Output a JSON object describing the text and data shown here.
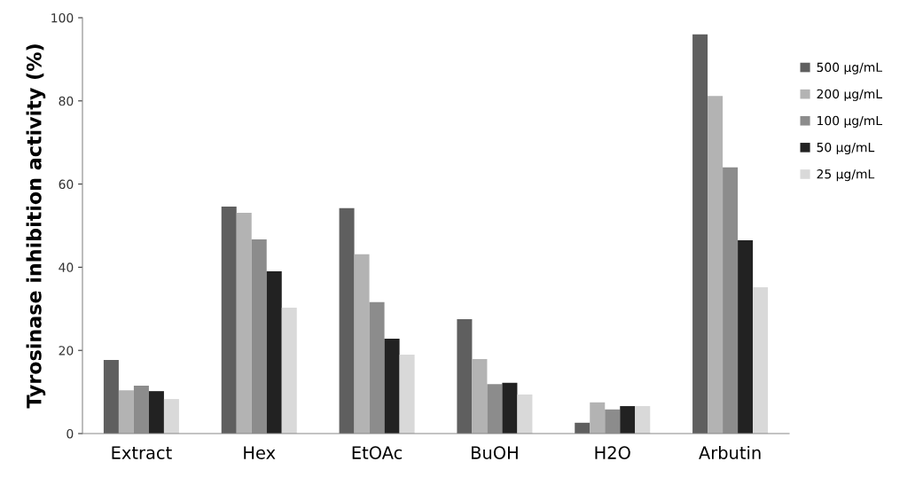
{
  "chart_data": {
    "type": "bar",
    "ylabel": "Tyrosinase inhibition activity (%)",
    "categories": [
      "Extract",
      "Hex",
      "EtOAc",
      "BuOH",
      "H2O",
      "Arbutin"
    ],
    "series": [
      {
        "name": "500 μg/mL",
        "color": "#5f5f5f",
        "values": [
          17.7,
          54.6,
          54.2,
          27.5,
          2.6,
          96.0
        ]
      },
      {
        "name": "200 μg/mL",
        "color": "#b3b3b3",
        "values": [
          10.4,
          53.1,
          43.1,
          17.9,
          7.5,
          81.2
        ]
      },
      {
        "name": "100 μg/mL",
        "color": "#8c8c8c",
        "values": [
          11.5,
          46.7,
          31.6,
          11.9,
          5.8,
          64.0
        ]
      },
      {
        "name": "50 μg/mL",
        "color": "#222222",
        "values": [
          10.2,
          39.0,
          22.8,
          12.2,
          6.6,
          46.5
        ]
      },
      {
        "name": "25 μg/mL",
        "color": "#d9d9d9",
        "values": [
          8.3,
          30.3,
          19.0,
          9.4,
          6.6,
          35.2
        ]
      }
    ],
    "ylim": [
      0,
      100
    ],
    "yticks": [
      0,
      20,
      40,
      60,
      80,
      100
    ],
    "grid": false,
    "legend": "right"
  }
}
